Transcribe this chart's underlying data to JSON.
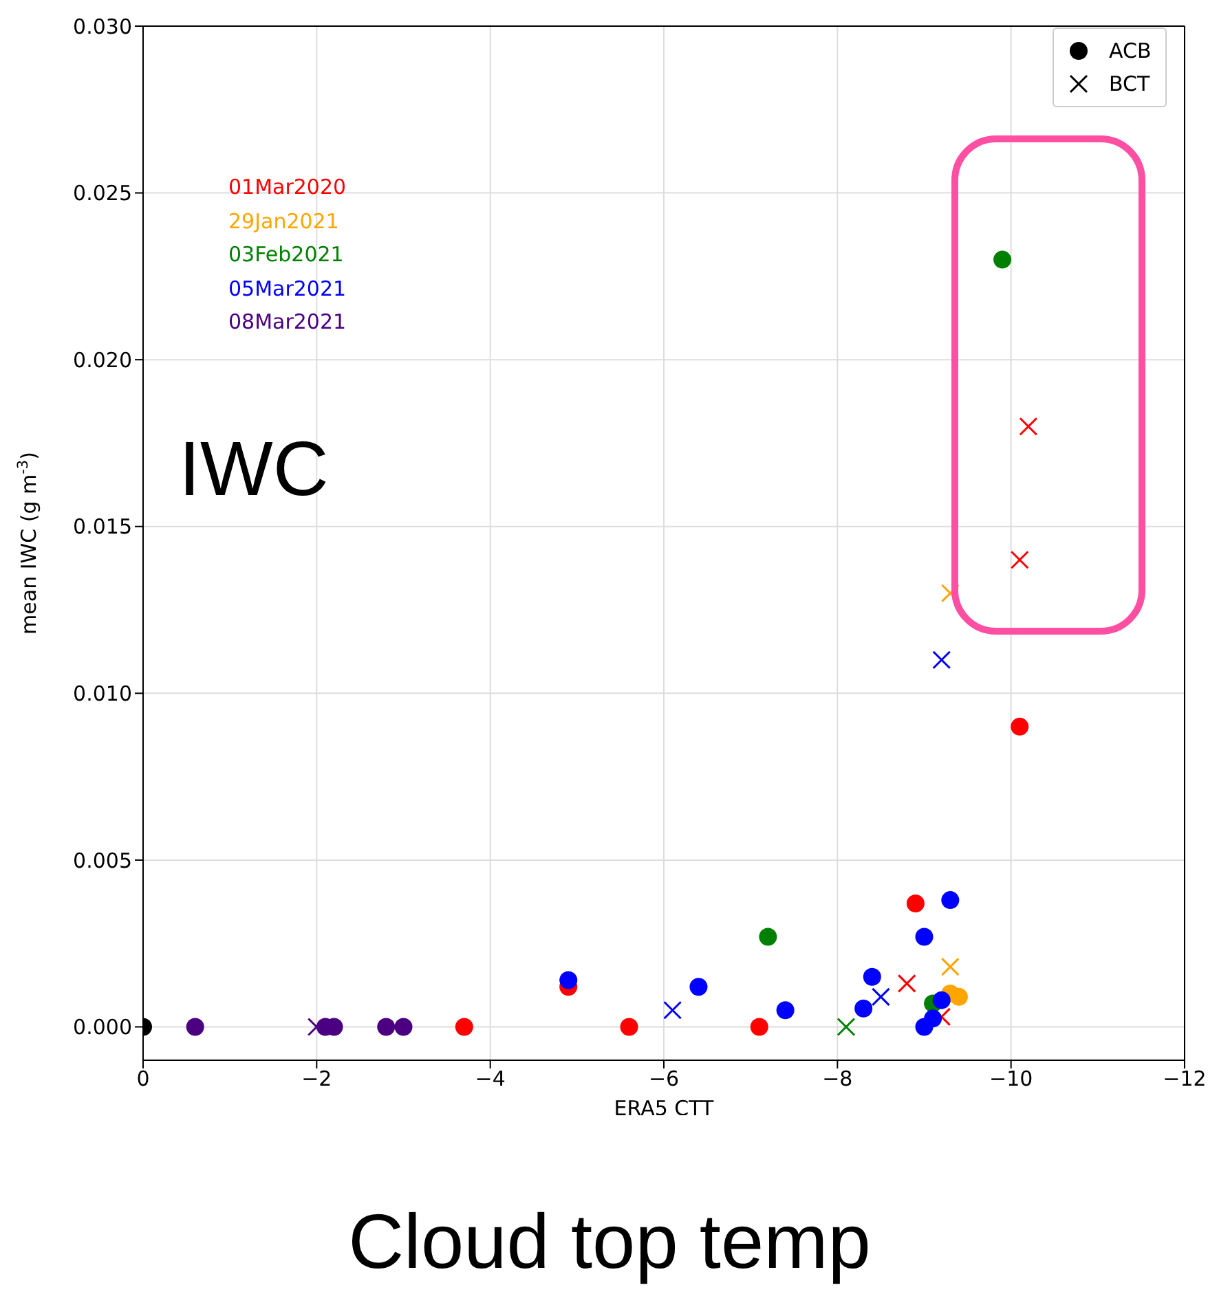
{
  "chart_data": {
    "type": "scatter",
    "xlabel": "ERA5 CTT",
    "ylabel": "mean IWC (g m$^{-3}$)",
    "xlim": [
      0,
      -12
    ],
    "xticks": [
      0,
      -2,
      -4,
      -6,
      -8,
      -10,
      -12
    ],
    "ylim": [
      -0.001,
      0.03
    ],
    "yticks": [
      {
        "value": 0,
        "label": "0.000"
      },
      {
        "value": 0.005,
        "label": "0.005"
      },
      {
        "value": 0.01,
        "label": "0.010"
      },
      {
        "value": 0.015,
        "label": "0.015"
      },
      {
        "value": 0.02,
        "label": "0.020"
      },
      {
        "value": 0.025,
        "label": "0.025"
      },
      {
        "value": 0.03,
        "label": "0.030"
      }
    ],
    "grid": true,
    "legend": "top right",
    "annotations": [
      "IWC",
      "Cloud top temp"
    ],
    "series": [
      {
        "name": "ACB",
        "color": "#000000",
        "marker": "circle",
        "x": [
          0
        ],
        "values": [
          0
        ]
      },
      {
        "name": "BCT",
        "color": "#000000",
        "marker": "cross"
      },
      {
        "name": "01Mar2020",
        "color": "#ff0000",
        "marker": "circle",
        "x": [
          -4.9,
          -3.7,
          -5.6,
          -7.1,
          -8.9,
          -10.1
        ],
        "values": [
          0.0012,
          0,
          0,
          0,
          0.0037,
          0.009
        ]
      },
      {
        "color": "#ff0000",
        "marker": "cross",
        "x": [
          -10.2,
          -10.1,
          -8.8,
          -9.2
        ],
        "values": [
          0.018,
          0.014,
          0.0013,
          0.0003
        ]
      },
      {
        "name": "29Jan2021",
        "color": "#ffa500",
        "marker": "circle",
        "x": [
          -9.3,
          -9.4
        ],
        "values": [
          0.001,
          0.0009
        ]
      },
      {
        "color": "#ffa500",
        "marker": "cross",
        "x": [
          -9.3,
          -9.3
        ],
        "values": [
          0.013,
          0.0018
        ]
      },
      {
        "name": "03Feb2021",
        "color": "#008000",
        "marker": "circle",
        "x": [
          -9.9,
          -7.2,
          -9.1
        ],
        "values": [
          0.023,
          0.0027,
          0.0007
        ]
      },
      {
        "color": "#008000",
        "marker": "cross",
        "x": [
          -8.1
        ],
        "values": [
          0
        ]
      },
      {
        "name": "05Mar2021",
        "color": "#0000ff",
        "marker": "circle",
        "x": [
          -4.9,
          -6.4,
          -7.4,
          -8.4,
          -8.3,
          -9.0,
          -9.3,
          -9.0,
          -9.1,
          -9.2
        ],
        "values": [
          0.0014,
          0.0012,
          0.0005,
          0.0015,
          0.00055,
          0.0027,
          0.0038,
          0,
          0.00025,
          0.0008
        ]
      },
      {
        "color": "#0000ff",
        "marker": "cross",
        "x": [
          -9.2,
          -6.1,
          -8.5
        ],
        "values": [
          0.011,
          0.0005,
          0.0009
        ]
      },
      {
        "name": "08Mar2021",
        "color": "#4b0082",
        "marker": "circle",
        "x": [
          -0.6,
          -2.1,
          -2.2,
          -2.8,
          -3.0
        ],
        "values": [
          0,
          0,
          0,
          0,
          0
        ]
      },
      {
        "color": "#4b0082",
        "marker": "cross",
        "x": [
          -2.0
        ],
        "values": [
          0
        ]
      }
    ]
  }
}
